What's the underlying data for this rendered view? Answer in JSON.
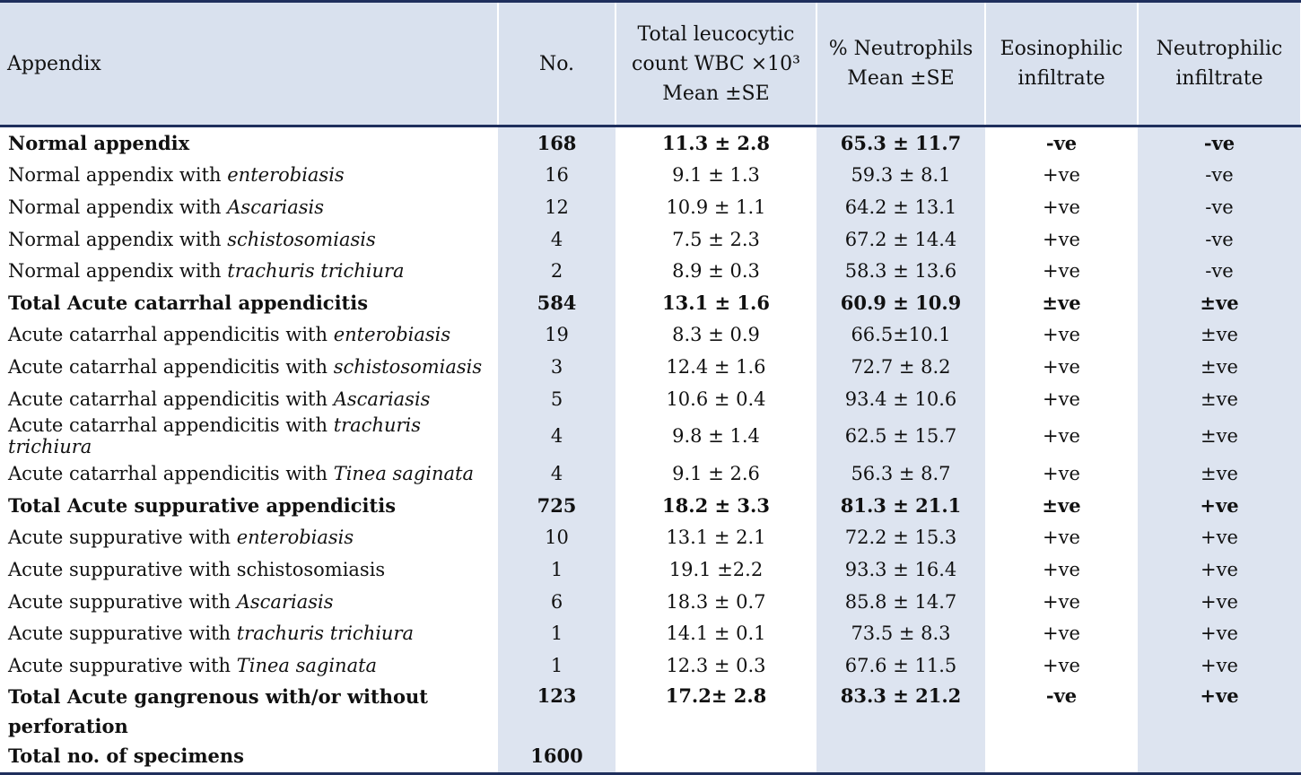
{
  "headers": [
    "Appendix",
    "No.",
    "Total leucocytic count WBC ×10³ Mean ±SE",
    "% Neutrophils Mean ±SE",
    "Eosinophilic infiltrate",
    "Neutrophilic infiltrate"
  ],
  "rows": [
    {
      "bold": true,
      "name": "Normal appendix",
      "italic": "",
      "no": "168",
      "wbc": "11.3 ± 2.8",
      "neut": "65.3 ± 11.7",
      "eos": "-ve",
      "neutinf": "-ve"
    },
    {
      "bold": false,
      "name": "Normal appendix with ",
      "italic": "enterobiasis",
      "no": "16",
      "wbc": "9.1 ± 1.3",
      "neut": "59.3 ± 8.1",
      "eos": "+ve",
      "neutinf": "-ve"
    },
    {
      "bold": false,
      "name": "Normal appendix with ",
      "italic": "Ascariasis",
      "no": "12",
      "wbc": "10.9 ± 1.1",
      "neut": "64.2 ± 13.1",
      "eos": "+ve",
      "neutinf": "-ve"
    },
    {
      "bold": false,
      "name": "Normal appendix with ",
      "italic": "schistosomiasis",
      "no": "4",
      "wbc": "7.5 ± 2.3",
      "neut": "67.2 ± 14.4",
      "eos": "+ve",
      "neutinf": "-ve"
    },
    {
      "bold": false,
      "name": "Normal appendix with ",
      "italic": "trachuris trichiura",
      "no": "2",
      "wbc": "8.9 ± 0.3",
      "neut": "58.3 ± 13.6",
      "eos": "+ve",
      "neutinf": "-ve"
    },
    {
      "bold": true,
      "name": "Total Acute catarrhal appendicitis",
      "italic": "",
      "no": "584",
      "wbc": "13.1 ± 1.6",
      "neut": "60.9 ± 10.9",
      "eos": "±ve",
      "neutinf": "±ve"
    },
    {
      "bold": false,
      "name": "Acute catarrhal appendicitis with ",
      "italic": "enterobiasis",
      "no": "19",
      "wbc": "8.3 ± 0.9",
      "neut": "66.5±10.1",
      "eos": "+ve",
      "neutinf": "±ve"
    },
    {
      "bold": false,
      "name": "Acute catarrhal appendicitis with ",
      "italic": "schistosomiasis",
      "no": "3",
      "wbc": "12.4 ± 1.6",
      "neut": "72.7 ± 8.2",
      "eos": "+ve",
      "neutinf": "±ve"
    },
    {
      "bold": false,
      "name": "Acute catarrhal appendicitis with ",
      "italic": "Ascariasis",
      "no": "5",
      "wbc": "10.6 ± 0.4",
      "neut": "93.4 ± 10.6",
      "eos": "+ve",
      "neutinf": "±ve"
    },
    {
      "bold": false,
      "name": "Acute catarrhal appendicitis with ",
      "italic": "trachuris trichiura",
      "no": "4",
      "wbc": "9.8 ± 1.4",
      "neut": "62.5 ± 15.7",
      "eos": "+ve",
      "neutinf": "±ve"
    },
    {
      "bold": false,
      "name": "Acute catarrhal appendicitis with ",
      "italic": "Tinea saginata",
      "no": "4",
      "wbc": "9.1 ± 2.6",
      "neut": "56.3 ± 8.7",
      "eos": "+ve",
      "neutinf": "±ve"
    },
    {
      "bold": true,
      "name": "Total Acute suppurative appendicitis",
      "italic": "",
      "no": "725",
      "wbc": "18.2 ± 3.3",
      "neut": "81.3 ± 21.1",
      "eos": "±ve",
      "neutinf": "+ve"
    },
    {
      "bold": false,
      "name": "Acute suppurative with ",
      "italic": "enterobiasis",
      "no": "10",
      "wbc": "13.1 ± 2.1",
      "neut": "72.2 ± 15.3",
      "eos": "+ve",
      "neutinf": "+ve"
    },
    {
      "bold": false,
      "name": "Acute suppurative with schistosomiasis",
      "italic": "",
      "no": "1",
      "wbc": "19.1 ±2.2",
      "neut": "93.3 ± 16.4",
      "eos": "+ve",
      "neutinf": "+ve"
    },
    {
      "bold": false,
      "name": "Acute suppurative with ",
      "italic": "Ascariasis",
      "no": "6",
      "wbc": "18.3 ± 0.7",
      "neut": "85.8 ± 14.7",
      "eos": "+ve",
      "neutinf": "+ve"
    },
    {
      "bold": false,
      "name": "Acute suppurative with ",
      "italic": "trachuris trichiura",
      "no": "1",
      "wbc": "14.1 ± 0.1",
      "neut": "73.5 ± 8.3",
      "eos": "+ve",
      "neutinf": "+ve"
    },
    {
      "bold": false,
      "name": "Acute suppurative with ",
      "italic": "Tinea saginata",
      "no": "1",
      "wbc": "12.3 ± 0.3",
      "neut": "67.6 ± 11.5",
      "eos": "+ve",
      "neutinf": "+ve"
    },
    {
      "bold": true,
      "name": "Total Acute gangrenous with/or without perforation",
      "italic": "",
      "no": "123",
      "wbc": "17.2± 2.8",
      "neut": "83.3 ± 21.2",
      "eos": "-ve",
      "neutinf": "+ve"
    },
    {
      "bold": true,
      "name": "Total no. of specimens",
      "italic": "",
      "no": "1600",
      "wbc": "",
      "neut": "",
      "eos": "",
      "neutinf": ""
    }
  ]
}
